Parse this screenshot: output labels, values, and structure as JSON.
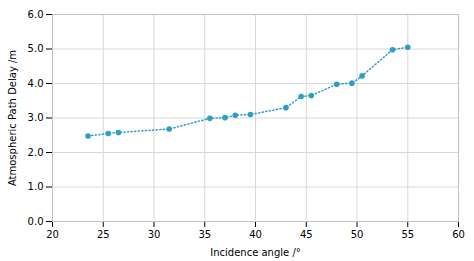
{
  "chart_data": {
    "type": "line",
    "x": [
      23.5,
      25.5,
      26.5,
      31.5,
      35.5,
      37.0,
      38.0,
      39.5,
      43.0,
      44.5,
      45.5,
      48.0,
      49.5,
      50.5,
      53.5,
      55.0
    ],
    "values": [
      2.48,
      2.55,
      2.58,
      2.68,
      2.99,
      3.01,
      3.08,
      3.1,
      3.3,
      3.62,
      3.65,
      3.98,
      4.01,
      4.22,
      4.98,
      5.05
    ],
    "color": "#2E9EC7",
    "marker": "circle",
    "line_style": "dotted",
    "xlabel": "Incidence angle /°",
    "ylabel": "Atmospheric Path Delay /m",
    "xlim": [
      20,
      60
    ],
    "ylim": [
      0,
      6
    ],
    "xticks": [
      20,
      25,
      30,
      35,
      40,
      45,
      50,
      55,
      60
    ],
    "yticks": [
      0,
      1,
      2,
      3,
      4,
      5,
      6
    ],
    "grid": true
  }
}
